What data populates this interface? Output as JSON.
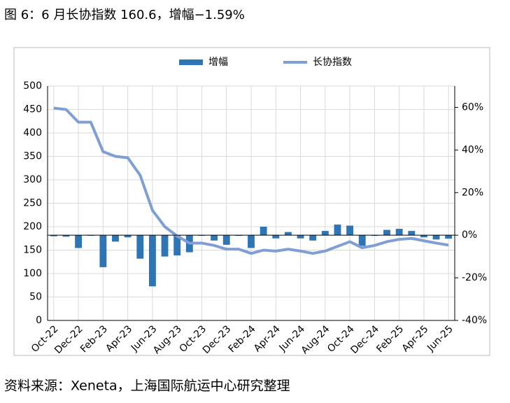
{
  "chart_data": {
    "type": "combo",
    "title": "图 6：6 月长协指数 160.6，增幅−1.59%",
    "source": "资料来源：Xeneta，上海国际航运中心研究整理",
    "categories": [
      "Oct-22",
      null,
      "Dec-22",
      null,
      "Feb-23",
      null,
      "Apr-23",
      null,
      "Jun-23",
      null,
      "Aug-23",
      null,
      "Oct-23",
      null,
      "Dec-23",
      null,
      "Feb-24",
      null,
      "Apr-24",
      null,
      "Jun-24",
      null,
      "Aug-24",
      null,
      "Oct-24",
      null,
      "Dec-24",
      null,
      "Feb-25",
      null,
      "Apr-25",
      null,
      "Jun-25"
    ],
    "series": [
      {
        "name": "增幅",
        "type": "bar",
        "axis": "y2",
        "color": "#2e75b6",
        "values": [
          -0.5,
          -0.7,
          -6,
          0,
          -15,
          -3,
          -1,
          -11,
          -24,
          -10,
          -9.5,
          -8,
          0,
          -2.5,
          -4.5,
          -0.3,
          -6,
          4,
          -1.5,
          1.5,
          -1.5,
          -2.5,
          2,
          5,
          4.5,
          -5,
          -0.3,
          2.5,
          3,
          2,
          -1,
          -2,
          -1.59
        ]
      },
      {
        "name": "长协指数",
        "type": "line",
        "axis": "y",
        "color": "#7f9fd4",
        "values": [
          453,
          450,
          423,
          423,
          360,
          350,
          347,
          310,
          235,
          200,
          180,
          165,
          165,
          160,
          152,
          152,
          143,
          150,
          148,
          152,
          148,
          143,
          148,
          158,
          168,
          155,
          160,
          168,
          173,
          175,
          170,
          165,
          160.6
        ]
      }
    ],
    "ylim": [
      0,
      500
    ],
    "yticks": [
      0,
      50,
      100,
      150,
      200,
      250,
      300,
      350,
      400,
      450,
      500
    ],
    "y2lim": [
      -40,
      70
    ],
    "y2ticks": [
      {
        "value": -40,
        "label": "-40%"
      },
      {
        "value": -20,
        "label": "-20%"
      },
      {
        "value": 0,
        "label": "0%"
      },
      {
        "value": 20,
        "label": "20%"
      },
      {
        "value": 40,
        "label": "40%"
      },
      {
        "value": 60,
        "label": "60%"
      }
    ],
    "grid": true
  }
}
